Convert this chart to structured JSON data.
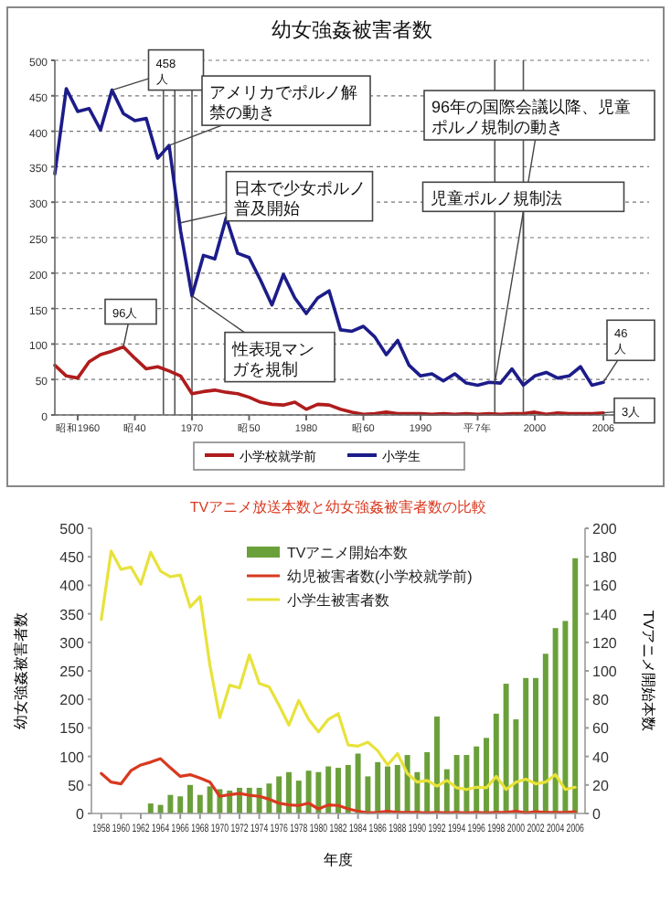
{
  "chart_data": [
    {
      "type": "line",
      "title": "幼女強姦被害者数",
      "x": [
        1958,
        1959,
        1960,
        1961,
        1962,
        1963,
        1964,
        1965,
        1966,
        1967,
        1968,
        1969,
        1970,
        1971,
        1972,
        1973,
        1974,
        1975,
        1976,
        1977,
        1978,
        1979,
        1980,
        1981,
        1982,
        1983,
        1984,
        1985,
        1986,
        1987,
        1988,
        1989,
        1990,
        1991,
        1992,
        1993,
        1994,
        1995,
        1996,
        1997,
        1998,
        1999,
        2000,
        2001,
        2002,
        2003,
        2004,
        2005,
        2006
      ],
      "series": [
        {
          "name": "小学校就学前",
          "color": "#b01c1c",
          "values": [
            70,
            55,
            52,
            75,
            85,
            90,
            96,
            80,
            65,
            68,
            62,
            55,
            30,
            33,
            35,
            32,
            30,
            25,
            18,
            15,
            14,
            18,
            8,
            15,
            14,
            8,
            4,
            1,
            2,
            4,
            2,
            2,
            2,
            1,
            2,
            1,
            2,
            1,
            2,
            1,
            2,
            2,
            4,
            1,
            3,
            2,
            2,
            2,
            3
          ]
        },
        {
          "name": "小学生",
          "color": "#1c1c8a",
          "values": [
            340,
            460,
            428,
            432,
            402,
            458,
            425,
            415,
            418,
            362,
            380,
            260,
            168,
            225,
            220,
            278,
            228,
            222,
            190,
            155,
            198,
            165,
            143,
            165,
            175,
            120,
            118,
            125,
            110,
            85,
            105,
            70,
            55,
            58,
            48,
            58,
            45,
            42,
            46,
            45,
            65,
            42,
            55,
            60,
            52,
            55,
            68,
            42,
            46
          ]
        }
      ],
      "xlim": [
        1958,
        2010
      ],
      "xticks": [
        {
          "value": 1960,
          "label": "昭和1960"
        },
        {
          "value": 1965,
          "label": "昭40"
        },
        1970,
        {
          "value": 1975,
          "label": "昭50"
        },
        1980,
        {
          "value": 1985,
          "label": "昭60"
        },
        1990,
        {
          "value": 1995,
          "label": "平7年"
        },
        2000,
        2006
      ],
      "ylim": [
        0,
        500
      ],
      "yticks": [
        0,
        50,
        100,
        150,
        200,
        250,
        300,
        350,
        400,
        450,
        500
      ],
      "grid": "y",
      "legend": "bottom",
      "line_style": "solid",
      "marker": "none",
      "ref_lines": [
        {
          "axis": "x",
          "value": 1967.5
        },
        {
          "axis": "x",
          "value": 1968.5
        },
        {
          "axis": "x",
          "value": 1970
        },
        {
          "axis": "x",
          "value": 1996.5
        },
        {
          "axis": "x",
          "value": 1999
        }
      ],
      "annotations": [
        {
          "text": "458人",
          "x": 1963,
          "y": 458
        },
        {
          "text": "アメリカでポルノ解禁の動き",
          "x": 1968,
          "y": 380
        },
        {
          "text": "日本で少女ポルノ普及開始",
          "x": 1969,
          "y": 271
        },
        {
          "text": "性表現マンガを規制",
          "x": 1970,
          "y": 168
        },
        {
          "text": "96年の国際会議以降、児童ポルノ規制の動き",
          "x": 1996.5,
          "y": 45
        },
        {
          "text": "児童ポルノ規制法",
          "x": 1999,
          "y": 55
        },
        {
          "text": "96人",
          "x": 1964,
          "y": 96
        },
        {
          "text": "46人",
          "x": 2006,
          "y": 46
        },
        {
          "text": "3人",
          "x": 2006,
          "y": 3
        }
      ]
    },
    {
      "type": "line",
      "title": "TVアニメ放送本数と幼女強姦被害者数の比較",
      "xlabel": "年度",
      "ylabel": "幼女強姦被害者数",
      "y2label": "TVアニメ開始本数",
      "x": [
        1958,
        1959,
        1960,
        1961,
        1962,
        1963,
        1964,
        1965,
        1966,
        1967,
        1968,
        1969,
        1970,
        1971,
        1972,
        1973,
        1974,
        1975,
        1976,
        1977,
        1978,
        1979,
        1980,
        1981,
        1982,
        1983,
        1984,
        1985,
        1986,
        1987,
        1988,
        1989,
        1990,
        1991,
        1992,
        1993,
        1994,
        1995,
        1996,
        1997,
        1998,
        1999,
        2000,
        2001,
        2002,
        2003,
        2004,
        2005,
        2006
      ],
      "series": [
        {
          "name": "TVアニメ開始本数",
          "type": "bar",
          "axis": "y2",
          "color": "#6aa03a",
          "values": [
            null,
            null,
            null,
            null,
            null,
            7,
            6,
            13,
            12,
            20,
            13,
            19,
            17,
            16,
            18,
            18,
            18,
            21,
            26,
            29,
            23,
            30,
            29,
            33,
            32,
            34,
            42,
            26,
            36,
            33,
            34,
            41,
            29,
            43,
            68,
            31,
            41,
            41,
            47,
            53,
            70,
            91,
            66,
            95,
            95,
            112,
            130,
            135,
            179
          ]
        },
        {
          "name": "幼児被害者数(小学校就学前)",
          "color": "#d9391f",
          "values": [
            70,
            55,
            52,
            75,
            85,
            90,
            96,
            80,
            65,
            68,
            62,
            55,
            30,
            33,
            35,
            32,
            30,
            25,
            18,
            15,
            14,
            18,
            8,
            15,
            14,
            8,
            4,
            1,
            2,
            4,
            2,
            2,
            2,
            1,
            2,
            1,
            2,
            1,
            2,
            1,
            2,
            2,
            4,
            1,
            3,
            2,
            2,
            2,
            3
          ]
        },
        {
          "name": "小学生被害者数",
          "color": "#e8e23a",
          "values": [
            340,
            460,
            428,
            432,
            402,
            458,
            425,
            415,
            418,
            362,
            380,
            260,
            168,
            225,
            220,
            278,
            228,
            222,
            190,
            155,
            198,
            165,
            143,
            165,
            175,
            120,
            118,
            125,
            110,
            85,
            105,
            70,
            55,
            58,
            48,
            58,
            45,
            42,
            46,
            45,
            65,
            42,
            55,
            60,
            52,
            55,
            68,
            42,
            46
          ]
        }
      ],
      "xlim": [
        1957,
        2007
      ],
      "xticks": [
        1958,
        1960,
        1962,
        1964,
        1966,
        1968,
        1970,
        1972,
        1974,
        1976,
        1978,
        1980,
        1982,
        1984,
        1986,
        1988,
        1990,
        1992,
        1994,
        1996,
        1998,
        2000,
        2002,
        2004,
        2006
      ],
      "ylim": [
        0,
        500
      ],
      "yticks": [
        0,
        50,
        100,
        150,
        200,
        250,
        300,
        350,
        400,
        450,
        500
      ],
      "y2lim": [
        0,
        200
      ],
      "y2ticks": [
        0,
        20,
        40,
        60,
        80,
        100,
        120,
        140,
        160,
        180,
        200
      ],
      "legend": "top",
      "line_style": "solid",
      "marker": "none"
    }
  ]
}
